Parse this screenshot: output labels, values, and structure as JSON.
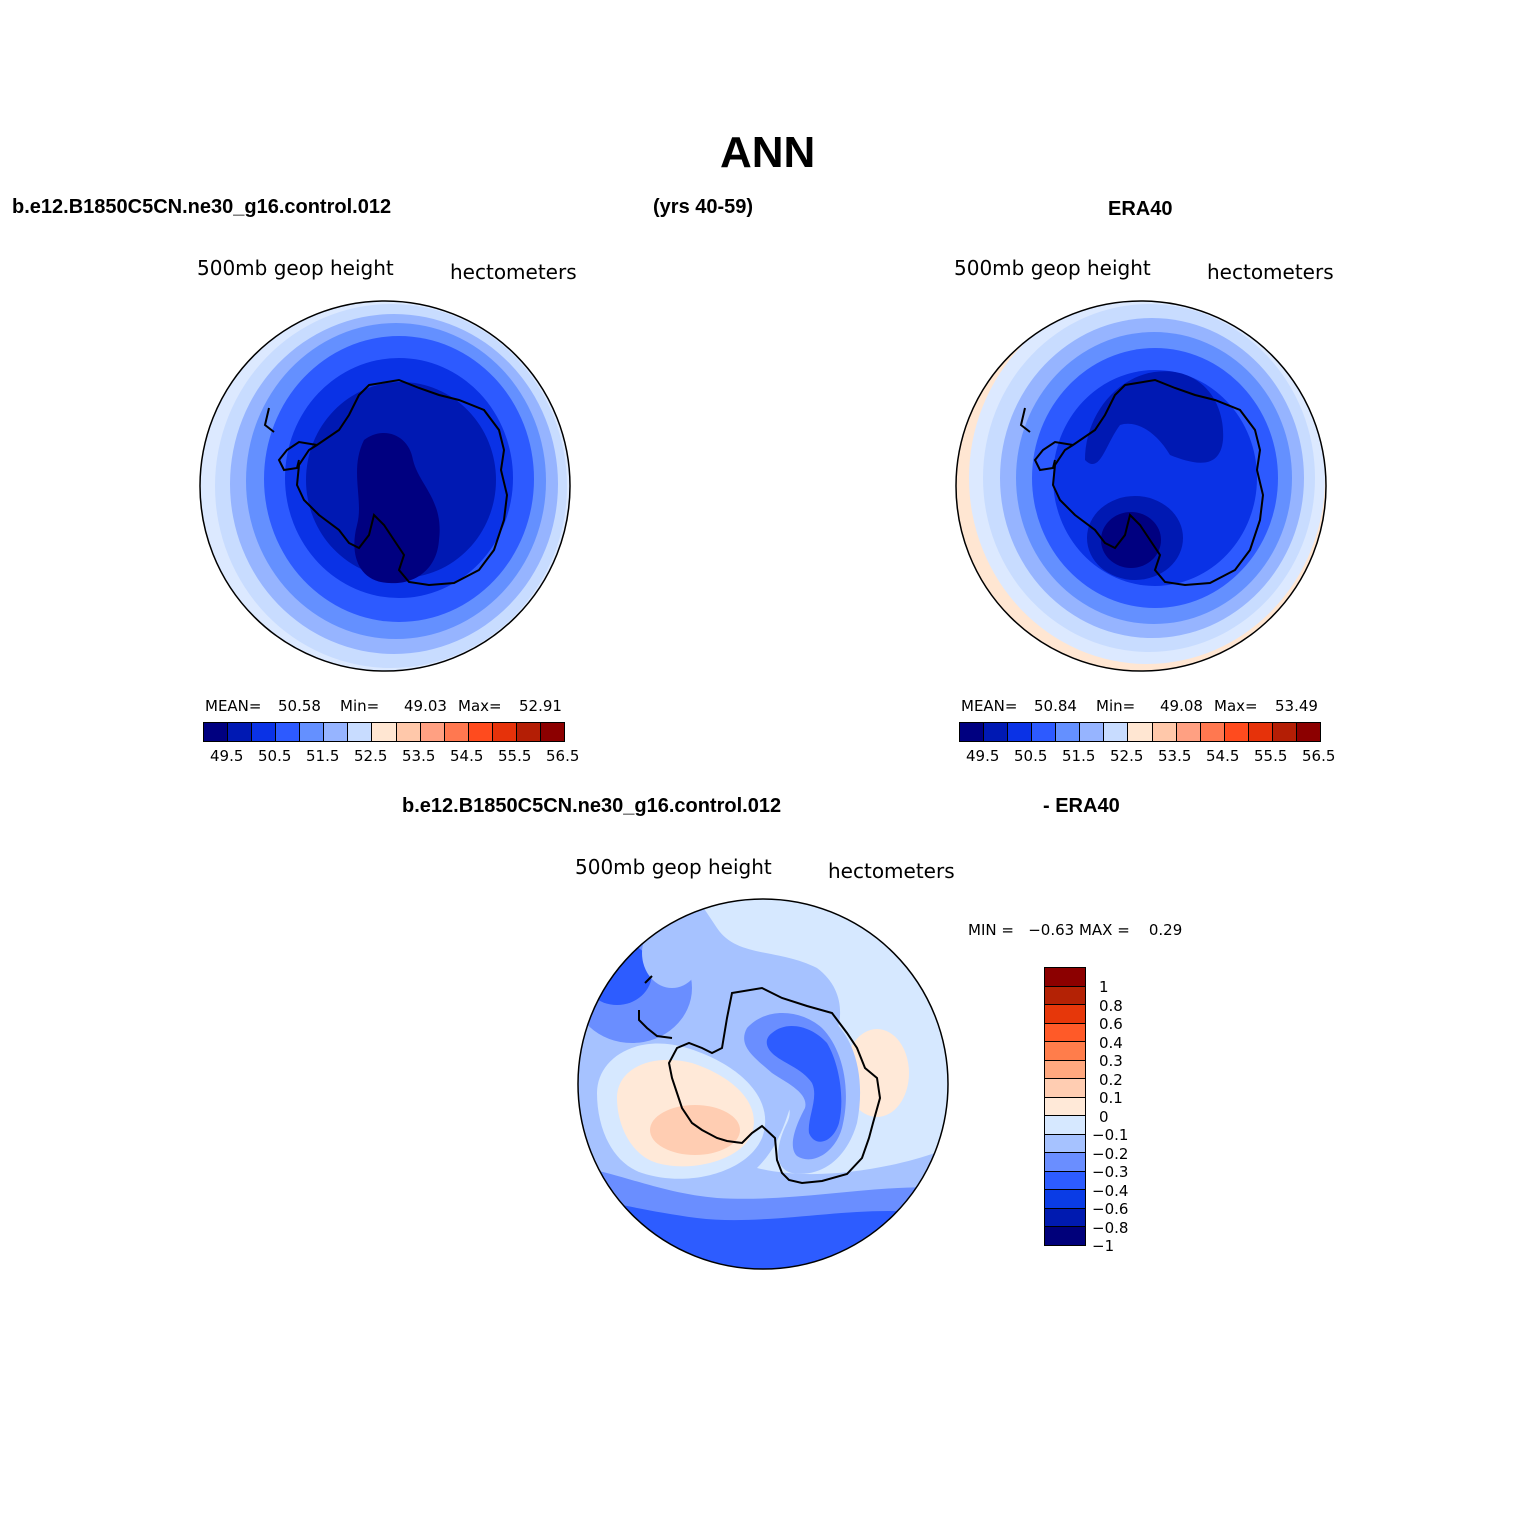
{
  "title": "ANN",
  "case_name": "b.e12.B1850C5CN.ne30_g16.control.012",
  "years": "(yrs 40-59)",
  "obs_name": "ERA40",
  "diff_case_name": "b.e12.B1850C5CN.ne30_g16.control.012",
  "diff_obs_name": "- ERA40",
  "colors": {
    "abs_scale": [
      "#000080",
      "#0019b3",
      "#0a32e6",
      "#2d5aff",
      "#6490ff",
      "#96b4ff",
      "#c8dcff",
      "#ffe6d2",
      "#ffc8aa",
      "#ffa082",
      "#ff7850",
      "#ff4b1e",
      "#e6320a",
      "#b41e05",
      "#8c0000"
    ],
    "diff_scale": [
      "#00007a",
      "#001ab0",
      "#0a3ce6",
      "#2d5cff",
      "#6a8eff",
      "#a6c2ff",
      "#d6e8ff",
      "#ffe9d8",
      "#ffcdb2",
      "#ffa87f",
      "#ff7d4b",
      "#ff5a28",
      "#e6370a",
      "#b42205",
      "#8c0000"
    ]
  },
  "panels": [
    {
      "id": "model",
      "variable": "500mb  geop height",
      "units": "hectometers",
      "mean_label": "MEAN=",
      "mean": "50.58",
      "min_label": "Min=",
      "min": "49.03",
      "max_label": "Max=",
      "max": "52.91",
      "ticks": [
        "49.5",
        "50.5",
        "51.5",
        "52.5",
        "53.5",
        "54.5",
        "55.5",
        "56.5"
      ]
    },
    {
      "id": "obs",
      "variable": "500mb  geop height",
      "units": "hectometers",
      "mean_label": "MEAN=",
      "mean": "50.84",
      "min_label": "Min=",
      "min": "49.08",
      "max_label": "Max=",
      "max": "53.49",
      "ticks": [
        "49.5",
        "50.5",
        "51.5",
        "52.5",
        "53.5",
        "54.5",
        "55.5",
        "56.5"
      ]
    },
    {
      "id": "diff",
      "variable": "500mb  geop height",
      "units": "hectometers",
      "minmax": "MIN =   −0.63 MAX =    0.29",
      "ticks": [
        "1",
        "0.8",
        "0.6",
        "0.4",
        "0.3",
        "0.2",
        "0.1",
        "0",
        "−0.1",
        "−0.2",
        "−0.3",
        "−0.4",
        "−0.6",
        "−0.8",
        "−1"
      ]
    }
  ]
}
